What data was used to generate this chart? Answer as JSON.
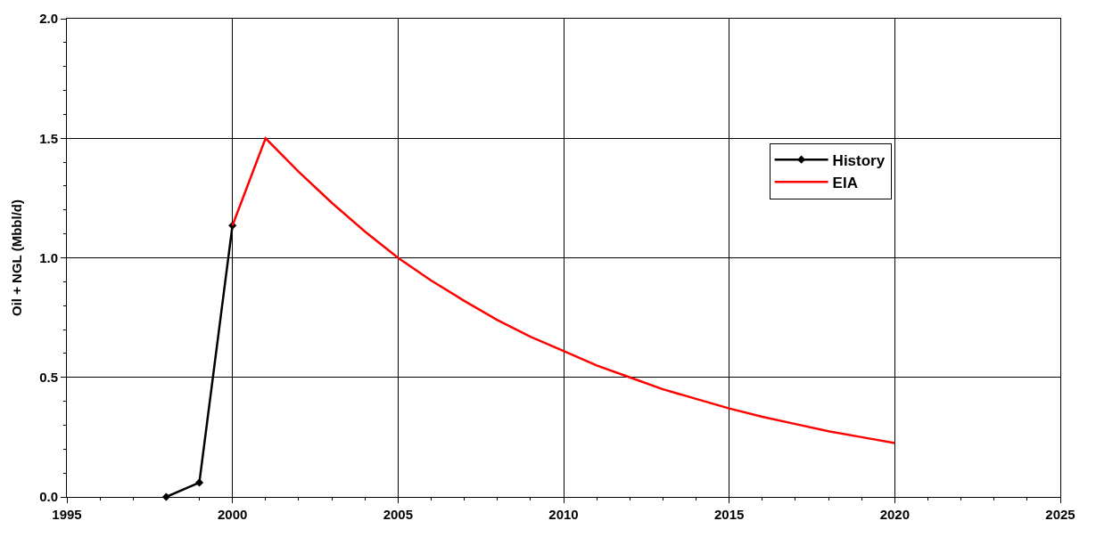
{
  "chart_data": {
    "type": "line",
    "ylabel": "Oil + NGL (Mbbl/d)",
    "series": [
      {
        "name": "History",
        "color": "#000000",
        "marker": "diamond",
        "x": [
          1998,
          1999,
          2000
        ],
        "values": [
          0.0,
          0.06,
          1.135
        ]
      },
      {
        "name": "EIA",
        "color": "#ff0000",
        "marker": "none",
        "x": [
          2000,
          2001,
          2002,
          2003,
          2004,
          2005,
          2006,
          2007,
          2008,
          2009,
          2010,
          2011,
          2012,
          2013,
          2014,
          2015,
          2016,
          2017,
          2018,
          2019,
          2020
        ],
        "values": [
          1.135,
          1.5,
          1.36,
          1.23,
          1.11,
          1.0,
          0.905,
          0.82,
          0.74,
          0.67,
          0.61,
          0.55,
          0.5,
          0.45,
          0.41,
          0.37,
          0.335,
          0.305,
          0.275,
          0.25,
          0.225
        ]
      }
    ],
    "xlim": [
      1995,
      2025
    ],
    "xticks": [
      1995,
      2000,
      2005,
      2010,
      2015,
      2020,
      2025
    ],
    "ylim": [
      0,
      2
    ],
    "yticks": [
      {
        "value": 0,
        "label": "0.0"
      },
      {
        "value": 0.5,
        "label": "0.5"
      },
      {
        "value": 1,
        "label": "1.0"
      },
      {
        "value": 1.5,
        "label": "1.5"
      },
      {
        "value": 2,
        "label": "2.0"
      }
    ],
    "grid": true,
    "legend": "top right",
    "line_style": "solid"
  }
}
